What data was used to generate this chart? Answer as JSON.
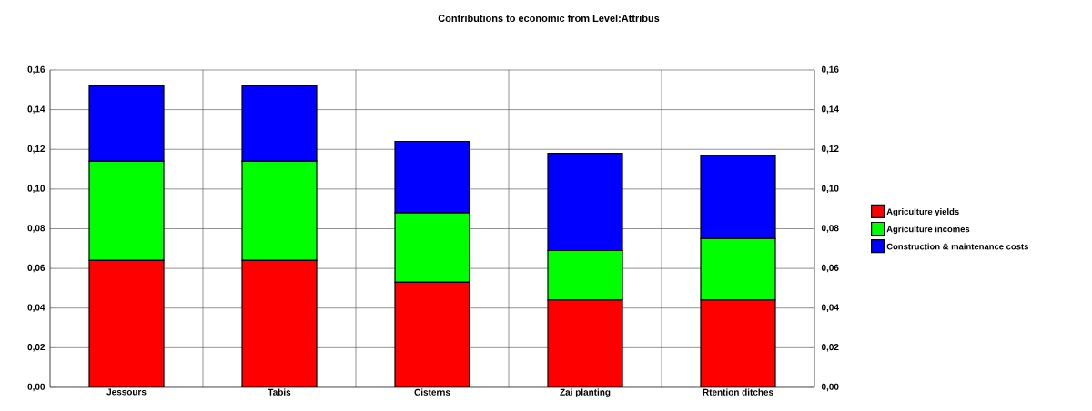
{
  "chart_data": {
    "type": "bar",
    "title": "Contributions to economic from Level:Attribus",
    "categories": [
      "Jessours",
      "Tabis",
      "Cisterns",
      "Zai planting",
      "Rtention ditches"
    ],
    "stacked": true,
    "series": [
      {
        "name": "Agriculture yields",
        "color": "#ff0000",
        "values": [
          0.064,
          0.064,
          0.053,
          0.044,
          0.044
        ]
      },
      {
        "name": "Agriculture incomes",
        "color": "#00ff00",
        "values": [
          0.05,
          0.05,
          0.035,
          0.025,
          0.031
        ]
      },
      {
        "name": "Construction & maintenance costs",
        "color": "#0000ff",
        "values": [
          0.038,
          0.038,
          0.036,
          0.049,
          0.042
        ]
      }
    ],
    "ylim": [
      0,
      0.16
    ],
    "yticks": [
      {
        "value": 0,
        "label": "0,00"
      },
      {
        "value": 0.02,
        "label": "0,02"
      },
      {
        "value": 0.04,
        "label": "0,04"
      },
      {
        "value": 0.06,
        "label": "0,06"
      },
      {
        "value": 0.08,
        "label": "0,08"
      },
      {
        "value": 0.1,
        "label": "0,10"
      },
      {
        "value": 0.12,
        "label": "0,12"
      },
      {
        "value": 0.14,
        "label": "0,14"
      },
      {
        "value": 0.16,
        "label": "0,16"
      }
    ],
    "y2lim": [
      0,
      0.16
    ],
    "y2ticks": [
      {
        "value": 0,
        "label": "0,00"
      },
      {
        "value": 0.02,
        "label": "0,02"
      },
      {
        "value": 0.04,
        "label": "0,04"
      },
      {
        "value": 0.06,
        "label": "0,06"
      },
      {
        "value": 0.08,
        "label": "0,08"
      },
      {
        "value": 0.1,
        "label": "0,10"
      },
      {
        "value": 0.12,
        "label": "0,12"
      },
      {
        "value": 0.14,
        "label": "0,14"
      },
      {
        "value": 0.16,
        "label": "0,16"
      }
    ],
    "grid": true,
    "legend": "right"
  }
}
